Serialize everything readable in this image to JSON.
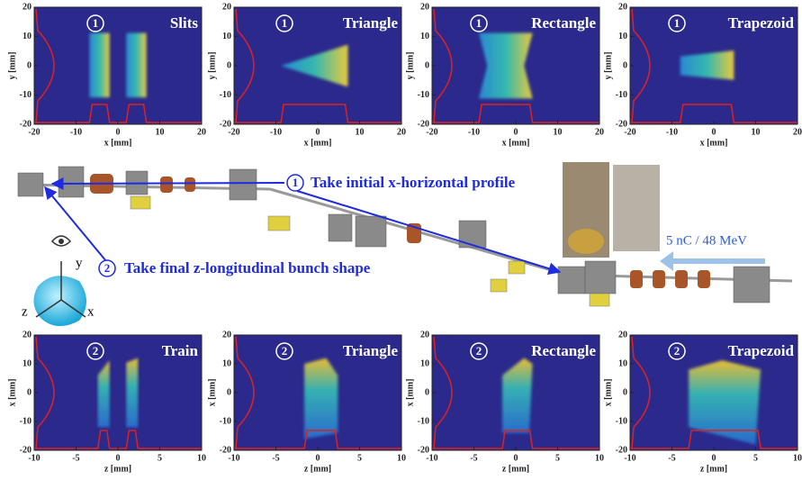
{
  "top_panels": [
    {
      "step": "1",
      "title": "Slits",
      "xlabel": "x [mm]",
      "ylabel": "y [mm]",
      "xlim": [
        -20,
        20
      ],
      "ylim": [
        -20,
        20
      ],
      "xticks": [
        -20,
        -10,
        0,
        10,
        20
      ],
      "yticks": [
        -20,
        -10,
        0,
        10,
        20
      ]
    },
    {
      "step": "1",
      "title": "Triangle",
      "xlabel": "x [mm]",
      "ylabel": "y [mm]",
      "xlim": [
        -20,
        20
      ],
      "ylim": [
        -20,
        20
      ],
      "xticks": [
        -20,
        -10,
        0,
        10,
        20
      ],
      "yticks": [
        -20,
        -10,
        0,
        10,
        20
      ]
    },
    {
      "step": "1",
      "title": "Rectangle",
      "xlabel": "x [mm]",
      "ylabel": "y [mm]",
      "xlim": [
        -20,
        20
      ],
      "ylim": [
        -20,
        20
      ],
      "xticks": [
        -20,
        -10,
        0,
        10,
        20
      ],
      "yticks": [
        -20,
        -10,
        0,
        10,
        20
      ]
    },
    {
      "step": "1",
      "title": "Trapezoid",
      "xlabel": "x [mm]",
      "ylabel": "y [mm]",
      "xlim": [
        -20,
        20
      ],
      "ylim": [
        -20,
        20
      ],
      "xticks": [
        -20,
        -10,
        0,
        10,
        20
      ],
      "yticks": [
        -20,
        -10,
        0,
        10,
        20
      ]
    }
  ],
  "bottom_panels": [
    {
      "step": "2",
      "title": "Train",
      "xlabel": "z [mm]",
      "ylabel": "x [mm]",
      "xlim": [
        -10,
        10
      ],
      "ylim": [
        -20,
        20
      ],
      "xticks": [
        -10,
        -5,
        0,
        5,
        10
      ],
      "yticks": [
        -20,
        -10,
        0,
        10,
        20
      ]
    },
    {
      "step": "2",
      "title": "Triangle",
      "xlabel": "z [mm]",
      "ylabel": "x [mm]",
      "xlim": [
        -10,
        10
      ],
      "ylim": [
        -20,
        20
      ],
      "xticks": [
        -10,
        -5,
        0,
        5,
        10
      ],
      "yticks": [
        -20,
        -10,
        0,
        10,
        20
      ]
    },
    {
      "step": "2",
      "title": "Rectangle",
      "xlabel": "z [mm]",
      "ylabel": "x [mm]",
      "xlim": [
        -10,
        10
      ],
      "ylim": [
        -20,
        20
      ],
      "xticks": [
        -10,
        -5,
        0,
        5,
        10
      ],
      "yticks": [
        -20,
        -10,
        0,
        10,
        20
      ]
    },
    {
      "step": "2",
      "title": "Trapezoid",
      "xlabel": "z [mm]",
      "ylabel": "x [mm]",
      "xlim": [
        -10,
        10
      ],
      "ylim": [
        -20,
        20
      ],
      "xticks": [
        -10,
        -5,
        0,
        5,
        10
      ],
      "yticks": [
        -20,
        -10,
        0,
        10,
        20
      ]
    }
  ],
  "annotations": [
    {
      "step": "1",
      "text": "Take initial x-horizontal profile"
    },
    {
      "step": "2",
      "text": "Take final z-longitudinal bunch shape"
    }
  ],
  "beam_label": "5 nC / 48 MeV",
  "axes_icon": {
    "y": "y",
    "z": "z",
    "x": "x"
  }
}
